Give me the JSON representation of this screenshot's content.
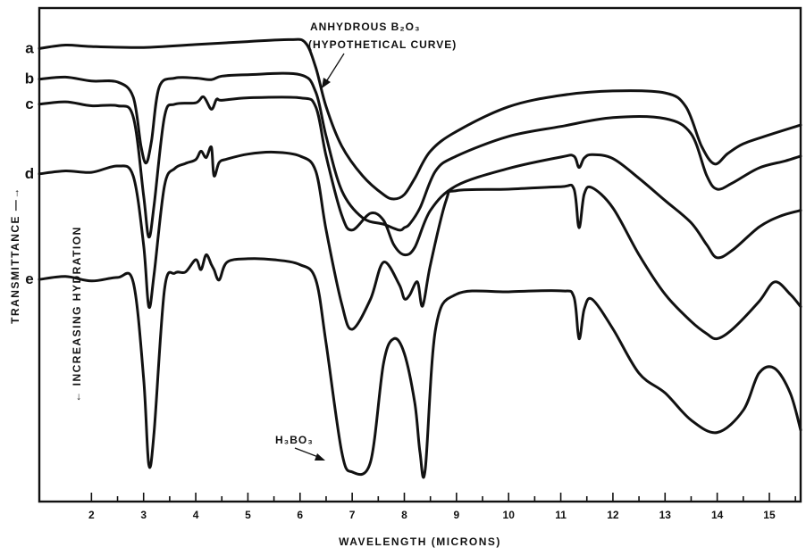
{
  "chart_data": {
    "type": "line",
    "title": "",
    "xlabel": "WAVELENGTH (MICRONS)",
    "ylabel": "TRANSMITTANCE —→",
    "ylabel2": "← INCREASING HYDRATION",
    "xlim": [
      1.0,
      15.6
    ],
    "x_ticks": [
      2,
      3,
      4,
      5,
      6,
      7,
      8,
      9,
      10,
      11,
      12,
      13,
      14,
      15
    ],
    "x_minor_ticks": [
      2.5,
      3.5,
      4.5,
      5.5,
      6.5,
      7.5,
      8.5,
      9.5,
      10.5,
      11.5,
      12.5,
      13.5,
      14.5,
      15.5
    ],
    "ylim": [
      0,
      100
    ],
    "y_axis_numeric": false,
    "grid": false,
    "series": [
      {
        "name": "a",
        "x": [
          1.0,
          1.5,
          2.0,
          3.0,
          4.0,
          5.0,
          5.8,
          6.1,
          6.3,
          6.5,
          6.8,
          7.2,
          7.6,
          7.8,
          8.0,
          8.2,
          8.5,
          9.0,
          10.0,
          11.0,
          12.0,
          13.0,
          13.4,
          13.7,
          13.95,
          14.2,
          14.5,
          15.0,
          15.6
        ],
        "y": [
          91.8,
          92.5,
          92.2,
          92.0,
          92.6,
          93.2,
          93.6,
          93.0,
          88.0,
          80.0,
          72.0,
          66.0,
          62.2,
          61.3,
          62.2,
          65.5,
          71.0,
          75.0,
          80.0,
          82.3,
          83.2,
          82.8,
          80.0,
          72.0,
          68.4,
          70.5,
          72.5,
          74.3,
          76.3
        ]
      },
      {
        "name": "b",
        "x": [
          1.0,
          1.5,
          2.0,
          2.5,
          2.8,
          2.95,
          3.05,
          3.15,
          3.3,
          3.6,
          4.0,
          4.3,
          4.5,
          5.0,
          6.0,
          6.3,
          6.5,
          6.8,
          7.2,
          7.6,
          7.9,
          8.0,
          8.1,
          8.3,
          8.6,
          9.0,
          10.0,
          11.0,
          12.0,
          13.0,
          13.5,
          13.8,
          14.0,
          14.3,
          14.8,
          15.3,
          15.6
        ],
        "y": [
          85.6,
          86.0,
          85.2,
          85.0,
          82.0,
          72.0,
          68.6,
          73.0,
          84.0,
          85.8,
          85.8,
          85.5,
          86.2,
          86.5,
          86.5,
          83.0,
          74.0,
          63.0,
          57.5,
          56.2,
          55.0,
          55.5,
          56.2,
          59.5,
          67.0,
          70.0,
          74.0,
          76.0,
          77.8,
          77.6,
          74.5,
          66.0,
          63.3,
          64.6,
          67.6,
          69.0,
          70.0
        ]
      },
      {
        "name": "c",
        "x": [
          1.0,
          1.5,
          2.0,
          2.5,
          2.8,
          3.0,
          3.1,
          3.2,
          3.4,
          3.6,
          4.0,
          4.15,
          4.3,
          4.4,
          4.5,
          5.0,
          6.0,
          6.3,
          6.5,
          6.8,
          7.0,
          7.35,
          7.6,
          7.8,
          8.0,
          8.2,
          8.5,
          9.0,
          10.0,
          11.0,
          11.25,
          11.35,
          11.45,
          11.6,
          12.0,
          12.5,
          13.0,
          13.5,
          13.8,
          14.0,
          14.3,
          14.8,
          15.2,
          15.6
        ],
        "y": [
          80.5,
          81.0,
          80.2,
          80.2,
          78.0,
          62.0,
          53.6,
          60.0,
          78.0,
          80.5,
          80.8,
          82.0,
          79.5,
          81.5,
          81.3,
          81.8,
          81.8,
          80.0,
          70.0,
          58.0,
          55.0,
          58.4,
          57.0,
          52.0,
          50.0,
          51.5,
          59.0,
          64.0,
          67.5,
          69.8,
          70.0,
          67.7,
          69.6,
          70.3,
          69.5,
          65.5,
          61.0,
          56.5,
          52.0,
          49.4,
          51.0,
          55.6,
          57.8,
          59.0
        ]
      },
      {
        "name": "d",
        "x": [
          1.0,
          1.5,
          2.0,
          2.5,
          2.8,
          3.0,
          3.1,
          3.2,
          3.4,
          3.6,
          3.8,
          4.0,
          4.1,
          4.2,
          4.3,
          4.35,
          4.45,
          4.6,
          5.0,
          5.5,
          6.0,
          6.3,
          6.5,
          6.8,
          7.0,
          7.35,
          7.6,
          7.9,
          8.0,
          8.1,
          8.25,
          8.35,
          8.5,
          8.8,
          9.0,
          10.0,
          11.0,
          11.25,
          11.35,
          11.45,
          11.6,
          12.0,
          12.5,
          13.0,
          13.5,
          13.8,
          14.0,
          14.3,
          14.8,
          15.1,
          15.4,
          15.6
        ],
        "y": [
          66.4,
          67.0,
          66.7,
          68.0,
          66.0,
          52.0,
          39.5,
          46.0,
          64.0,
          67.5,
          68.5,
          69.3,
          71.0,
          69.7,
          71.8,
          66.0,
          68.7,
          69.4,
          70.4,
          70.8,
          70.0,
          67.0,
          55.0,
          40.0,
          34.9,
          41.0,
          48.5,
          44.0,
          41.1,
          41.8,
          44.5,
          39.6,
          48.0,
          61.0,
          63.0,
          63.3,
          63.8,
          63.4,
          55.5,
          62.3,
          63.6,
          59.5,
          50.0,
          42.0,
          36.5,
          34.0,
          33.0,
          35.0,
          40.5,
          44.5,
          42.0,
          39.5
        ]
      },
      {
        "name": "e",
        "x": [
          1.0,
          1.5,
          2.0,
          2.5,
          2.8,
          3.0,
          3.1,
          3.2,
          3.4,
          3.6,
          3.8,
          4.0,
          4.1,
          4.2,
          4.3,
          4.35,
          4.45,
          4.6,
          5.0,
          5.5,
          6.0,
          6.3,
          6.5,
          6.8,
          7.0,
          7.35,
          7.6,
          7.8,
          8.0,
          8.2,
          8.3,
          8.4,
          8.6,
          9.0,
          10.0,
          11.0,
          11.25,
          11.35,
          11.45,
          11.6,
          12.0,
          12.5,
          13.0,
          13.5,
          14.0,
          14.5,
          14.8,
          15.1,
          15.4,
          15.6
        ],
        "y": [
          45.0,
          45.6,
          44.7,
          45.4,
          44.5,
          25.0,
          7.5,
          14.0,
          43.0,
          46.3,
          46.5,
          49.0,
          47.0,
          50.0,
          48.0,
          47.0,
          44.9,
          48.5,
          49.2,
          49.0,
          48.0,
          45.0,
          32.0,
          10.0,
          6.0,
          8.0,
          28.0,
          33.0,
          30.0,
          20.0,
          10.0,
          6.4,
          35.0,
          42.0,
          42.5,
          42.7,
          41.5,
          33.0,
          39.0,
          41.0,
          35.0,
          26.0,
          22.0,
          16.5,
          14.0,
          18.5,
          26.0,
          27.0,
          22.0,
          14.5
        ]
      }
    ],
    "curve_labels": [
      "a",
      "b",
      "c",
      "d",
      "e"
    ],
    "annotations": [
      {
        "text": "ANHYDROUS B₂O₃",
        "target_series": "a"
      },
      {
        "text": "(HYPOTHETICAL CURVE)",
        "target_series": "a"
      },
      {
        "text": "H₃BO₃",
        "target_series": "e"
      }
    ]
  }
}
